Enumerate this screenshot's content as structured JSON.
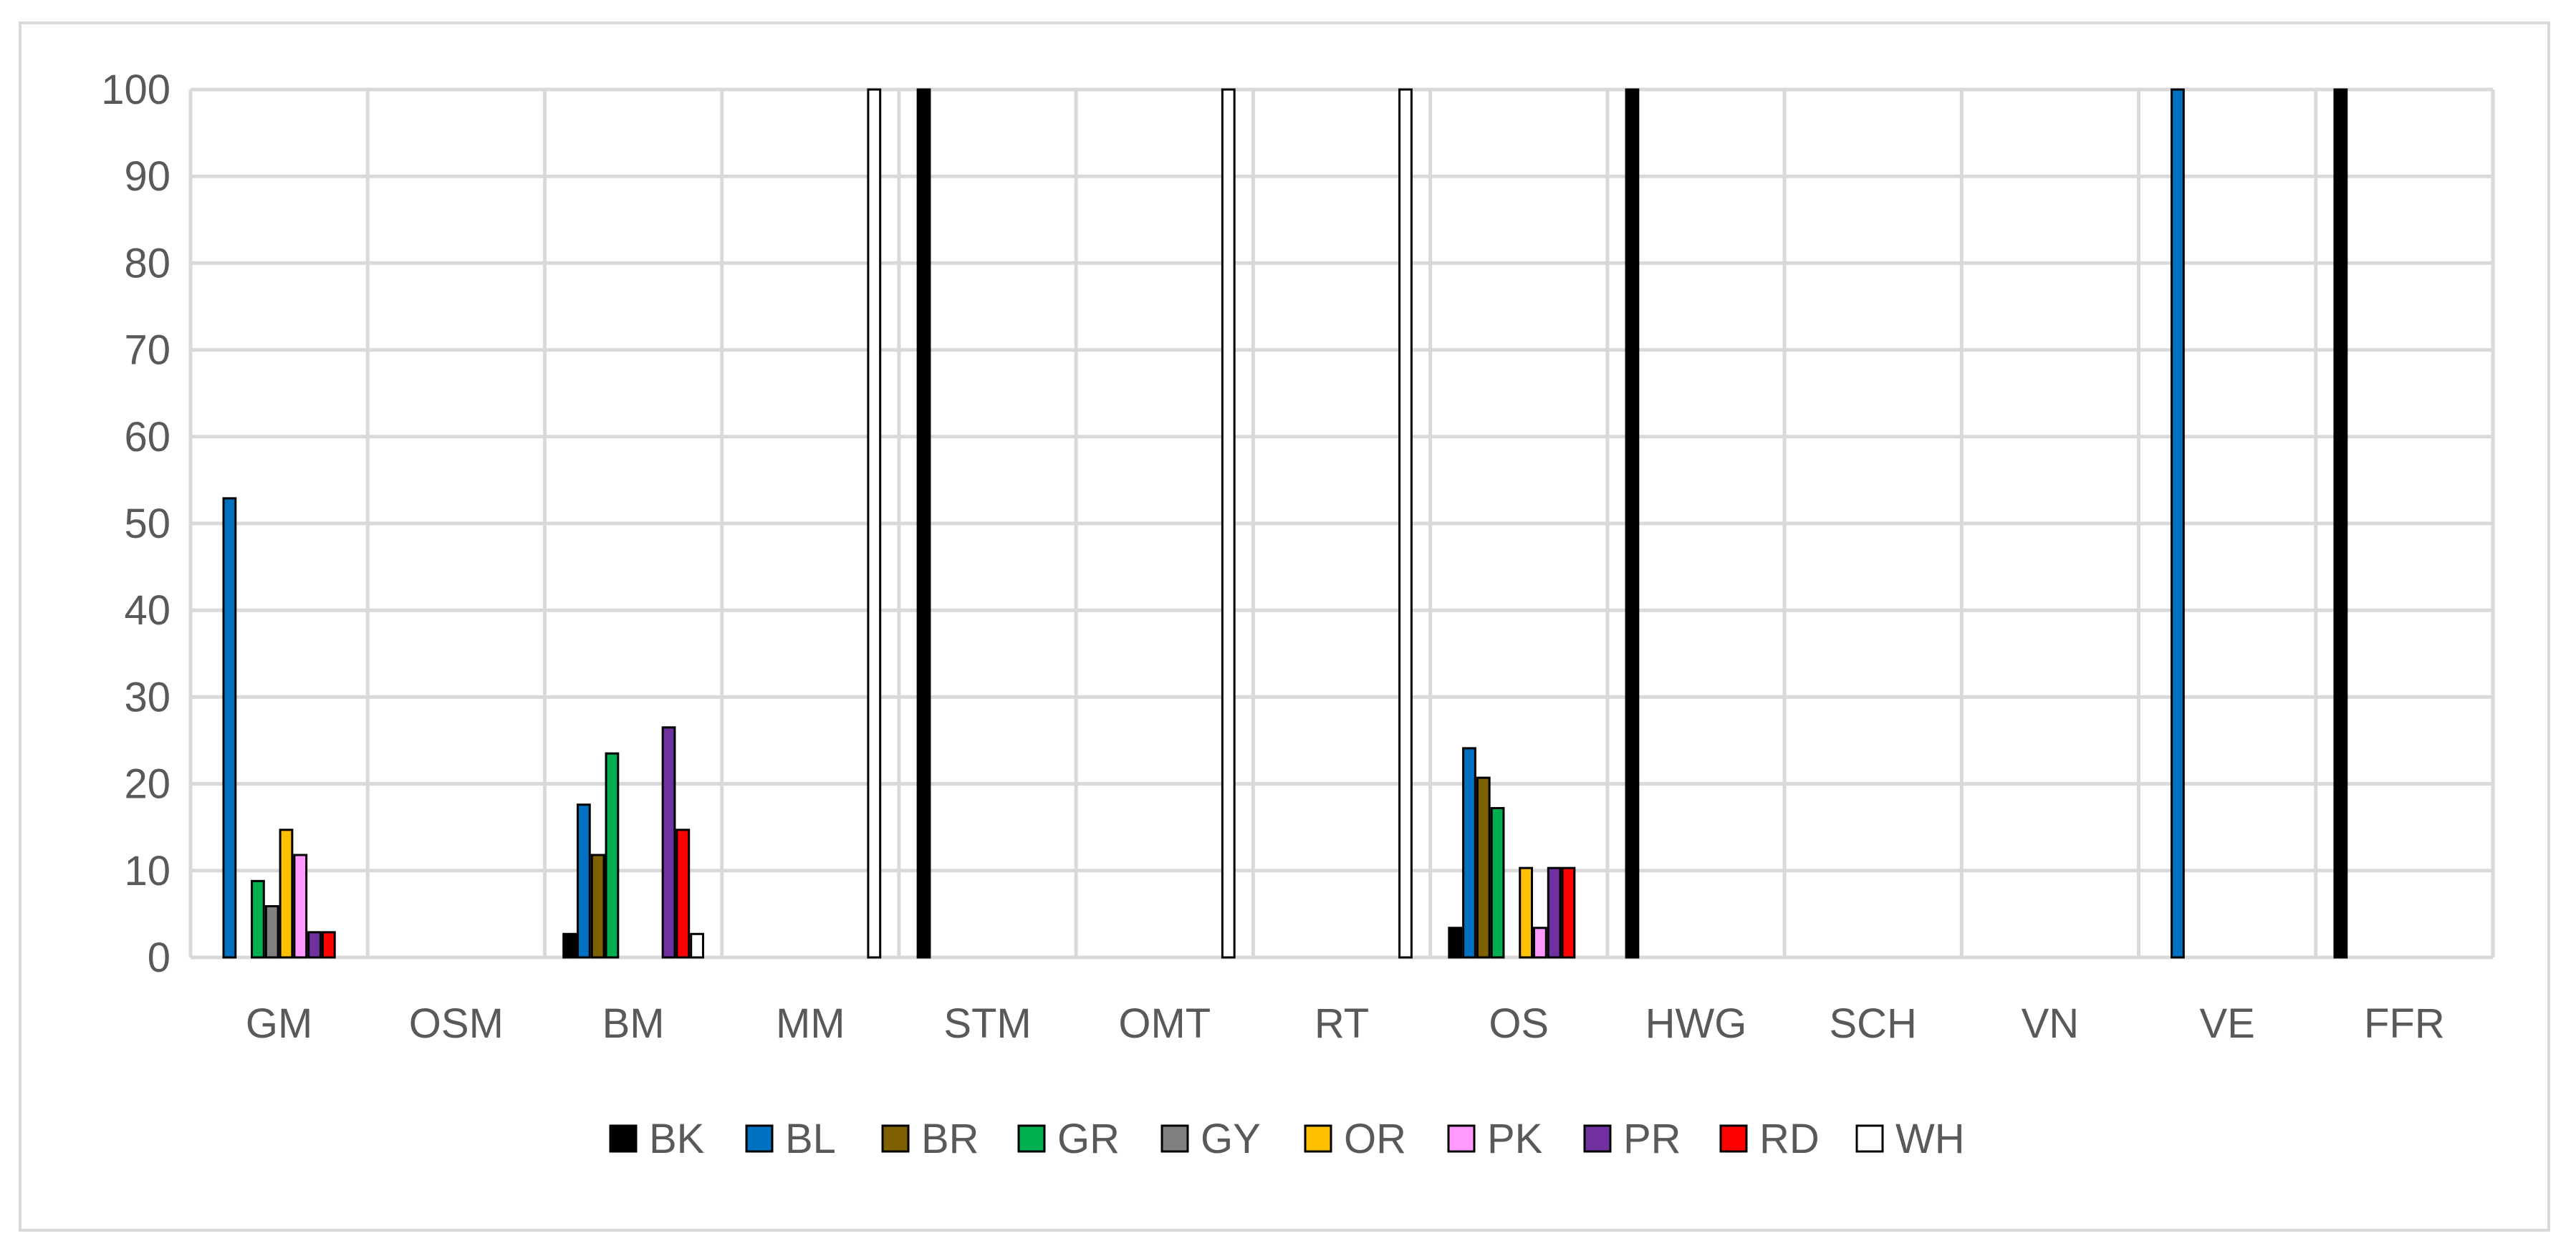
{
  "chart_data": {
    "type": "bar",
    "title": "",
    "xlabel": "",
    "ylabel": "",
    "ylim": [
      0,
      100
    ],
    "yticks": [
      0,
      10,
      20,
      30,
      40,
      50,
      60,
      70,
      80,
      90,
      100
    ],
    "grid": true,
    "legend_position": "bottom",
    "categories": [
      "GM",
      "OSM",
      "BM",
      "MM",
      "STM",
      "OMT",
      "RT",
      "OS",
      "HWG",
      "SCH",
      "VN",
      "VE",
      "FFR"
    ],
    "series": [
      {
        "name": "BK",
        "color": "#000000",
        "values": [
          0,
          0,
          2.7,
          0,
          100,
          0,
          0,
          3.4,
          100,
          0,
          0,
          0,
          100
        ]
      },
      {
        "name": "BL",
        "color": "#0070c0",
        "values": [
          52.9,
          0,
          17.6,
          0,
          0,
          0,
          0,
          24.1,
          0,
          0,
          0,
          100,
          0
        ]
      },
      {
        "name": "BR",
        "color": "#7f6000",
        "values": [
          0,
          0,
          11.8,
          0,
          0,
          0,
          0,
          20.7,
          0,
          0,
          0,
          0,
          0
        ]
      },
      {
        "name": "GR",
        "color": "#00b050",
        "values": [
          8.8,
          0,
          23.5,
          0,
          0,
          0,
          0,
          17.2,
          0,
          0,
          0,
          0,
          0
        ]
      },
      {
        "name": "GY",
        "color": "#808080",
        "values": [
          5.9,
          0,
          0,
          0,
          0,
          0,
          0,
          0,
          0,
          0,
          0,
          0,
          0
        ]
      },
      {
        "name": "OR",
        "color": "#ffc000",
        "values": [
          14.7,
          0,
          0,
          0,
          0,
          0,
          0,
          10.3,
          0,
          0,
          0,
          0,
          0
        ]
      },
      {
        "name": "PK",
        "color": "#ff99ff",
        "values": [
          11.8,
          0,
          0,
          0,
          0,
          0,
          0,
          3.4,
          0,
          0,
          0,
          0,
          0
        ]
      },
      {
        "name": "PR",
        "color": "#7030a0",
        "values": [
          2.9,
          0,
          26.5,
          0,
          0,
          0,
          0,
          10.3,
          0,
          0,
          0,
          0,
          0
        ]
      },
      {
        "name": "RD",
        "color": "#ff0000",
        "values": [
          2.9,
          0,
          14.7,
          0,
          0,
          0,
          0,
          10.3,
          0,
          0,
          0,
          0,
          0
        ]
      },
      {
        "name": "WH",
        "color": "#ffffff",
        "values": [
          0,
          0,
          2.7,
          100,
          0,
          100,
          100,
          0,
          0,
          0,
          0,
          0,
          0
        ]
      }
    ]
  }
}
